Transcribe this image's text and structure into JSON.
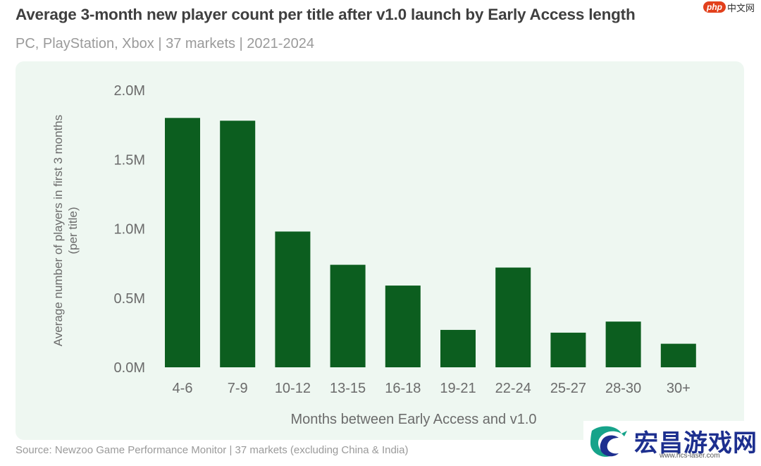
{
  "title": "Average 3-month new player count per title after v1.0 launch by Early Access length",
  "subtitle": "PC, PlayStation, Xbox | 37 markets | 2021-2024",
  "source": "Source: Newzoo Game Performance Monitor | 37 markets (excluding China & India)",
  "watermark": {
    "php_badge": "php",
    "php_text": "中文网",
    "site_name": "宏昌游戏网",
    "site_url": "www.hcs-laser.com",
    "logo_icon": "dragon-logo-icon"
  },
  "colors": {
    "bar": "#0c5e1f",
    "panel": "#eef7f1",
    "axis_text": "#6b6b6b"
  },
  "chart_data": {
    "type": "bar",
    "title": "Average 3-month new player count per title after v1.0 launch by Early Access length",
    "subtitle": "PC, PlayStation, Xbox | 37 markets | 2021-2024",
    "xlabel": "Months between Early Access and v1.0",
    "ylabel_lines": [
      "Average number of players in first 3 months",
      "(per title)"
    ],
    "categories": [
      "4-6",
      "7-9",
      "10-12",
      "13-15",
      "16-18",
      "19-21",
      "22-24",
      "25-27",
      "28-30",
      "30+"
    ],
    "values": [
      1800000,
      1780000,
      980000,
      740000,
      590000,
      270000,
      720000,
      250000,
      330000,
      170000
    ],
    "ylim": [
      0,
      2000000
    ],
    "yticks": [
      {
        "value": 0,
        "label": "0.0M"
      },
      {
        "value": 500000,
        "label": "0.5M"
      },
      {
        "value": 1000000,
        "label": "1.0M"
      },
      {
        "value": 1500000,
        "label": "1.5M"
      },
      {
        "value": 2000000,
        "label": "2.0M"
      }
    ],
    "grid": false,
    "legend": "none"
  }
}
